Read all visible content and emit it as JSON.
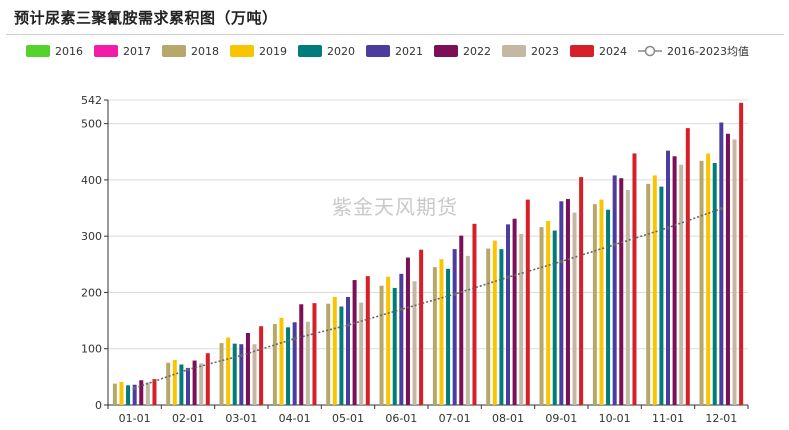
{
  "chart_data": {
    "type": "bar",
    "title": "预计尿素三聚氰胺需求累积图（万吨）",
    "watermark": "紫金天风期货",
    "categories": [
      "01-01",
      "02-01",
      "03-01",
      "04-01",
      "05-01",
      "06-01",
      "07-01",
      "08-01",
      "09-01",
      "10-01",
      "11-01",
      "12-01"
    ],
    "ylim": [
      0,
      542
    ],
    "yticks": [
      0,
      100,
      200,
      300,
      400,
      500,
      542
    ],
    "grid": true,
    "legend_position": "top",
    "series": [
      {
        "name": "2016",
        "color": "#55d22e",
        "values": [
          null,
          null,
          null,
          null,
          null,
          null,
          null,
          null,
          null,
          null,
          null,
          null
        ]
      },
      {
        "name": "2017",
        "color": "#f21ca9",
        "values": [
          null,
          null,
          null,
          null,
          null,
          null,
          null,
          null,
          null,
          null,
          null,
          null
        ]
      },
      {
        "name": "2018",
        "color": "#b8a76a",
        "values": [
          38,
          75,
          110,
          144,
          180,
          212,
          245,
          278,
          316,
          357,
          393,
          434
        ]
      },
      {
        "name": "2019",
        "color": "#f9c500",
        "values": [
          41,
          80,
          120,
          155,
          192,
          228,
          259,
          292,
          327,
          365,
          408,
          447
        ]
      },
      {
        "name": "2020",
        "color": "#007c7c",
        "values": [
          35,
          72,
          109,
          138,
          175,
          208,
          242,
          277,
          310,
          347,
          388,
          430
        ]
      },
      {
        "name": "2021",
        "color": "#4b3d9e",
        "values": [
          36,
          66,
          108,
          147,
          192,
          233,
          277,
          321,
          362,
          408,
          452,
          502
        ]
      },
      {
        "name": "2022",
        "color": "#7d0f56",
        "values": [
          44,
          79,
          128,
          179,
          222,
          262,
          301,
          331,
          366,
          403,
          442,
          482
        ]
      },
      {
        "name": "2023",
        "color": "#c4b8a2",
        "values": [
          40,
          74,
          108,
          148,
          182,
          220,
          265,
          304,
          342,
          382,
          427,
          472
        ]
      },
      {
        "name": "2024",
        "color": "#d61f26",
        "values": [
          46,
          92,
          140,
          181,
          229,
          276,
          322,
          365,
          405,
          447,
          492,
          537
        ]
      }
    ],
    "average_line": {
      "name": "2016-2023均值",
      "color": "#666666",
      "values": [
        30,
        63,
        88,
        118,
        142,
        170,
        197,
        227,
        255,
        285,
        315,
        349
      ]
    }
  }
}
